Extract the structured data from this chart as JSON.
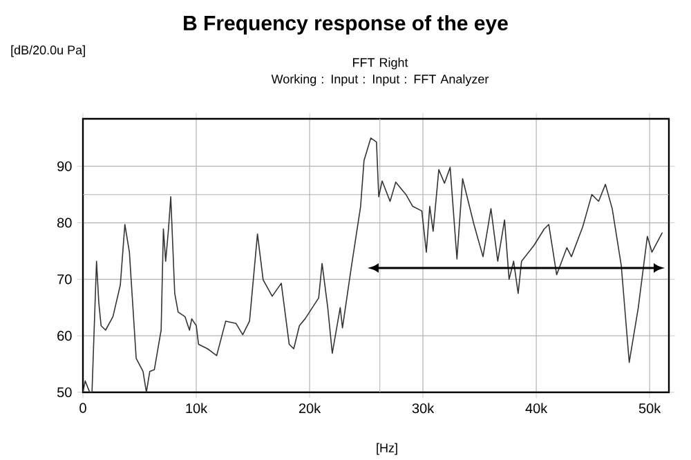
{
  "chart_data": {
    "type": "line",
    "title": "**B**  Frequency response of the eye",
    "subtitle": "FFT Right\nWorking : Input : Input : FFT Analyzer",
    "ylabel": "[dB/20.0u Pa]",
    "xlabel": "[Hz]",
    "xlim": [
      0,
      51700
    ],
    "ylim": [
      50,
      98.4
    ],
    "xticks": [
      {
        "value": 0,
        "label": "0"
      },
      {
        "value": 10000,
        "label": "10k"
      },
      {
        "value": 20000,
        "label": "20k"
      },
      {
        "value": 30000,
        "label": "30k"
      },
      {
        "value": 40000,
        "label": "40k"
      },
      {
        "value": 50000,
        "label": "50k"
      }
    ],
    "yticks": [
      50,
      60,
      70,
      80,
      90
    ],
    "grid": true,
    "ref_lines": [
      {
        "axis": "x",
        "value": 26200,
        "color": "#b0b0b0"
      },
      {
        "axis": "y",
        "value": 85,
        "color": "#b0b0b0"
      }
    ],
    "series": [
      {
        "color": "#333333",
        "x": [
          0,
          200,
          600,
          800,
          1200,
          1400,
          1600,
          2000,
          2650,
          3300,
          3700,
          4100,
          4700,
          5300,
          5600,
          5900,
          6300,
          6900,
          7100,
          7300,
          7550,
          7750,
          8100,
          8400,
          9000,
          9400,
          9600,
          10000,
          10200,
          11000,
          11800,
          12600,
          13500,
          14100,
          14700,
          15400,
          15900,
          16700,
          17500,
          18200,
          18600,
          19100,
          19600,
          20800,
          21100,
          21600,
          22000,
          22700,
          22900,
          23700,
          24500,
          24800,
          25400,
          25900,
          26100,
          26400,
          27100,
          27600,
          28500,
          29100,
          29900,
          30300,
          30600,
          30900,
          31400,
          31900,
          32400,
          33000,
          33500,
          34500,
          35300,
          36000,
          36600,
          37200,
          37600,
          38000,
          38400,
          38700,
          39800,
          40700,
          41100,
          41800,
          42700,
          43100,
          44100,
          44900,
          45500,
          46100,
          46700,
          47500,
          48200,
          49000,
          49800,
          50200,
          51100
        ],
        "values": [
          50,
          52,
          50,
          50,
          73.2,
          65.9,
          61.8,
          61,
          63.4,
          69,
          79.7,
          74.8,
          56,
          53.7,
          50,
          53.7,
          54,
          61,
          78.9,
          73.2,
          78.9,
          84.6,
          67.5,
          64.2,
          63.4,
          61,
          63,
          61.8,
          58.5,
          57.7,
          56.5,
          62.6,
          62.2,
          60.2,
          62.6,
          78,
          69.9,
          67,
          69.3,
          58.5,
          57.7,
          61.8,
          63,
          66.7,
          72.8,
          65,
          56.9,
          65,
          61.4,
          72.4,
          82.9,
          91,
          95,
          94.3,
          84.6,
          87.4,
          83.8,
          87.2,
          85,
          82.9,
          82.1,
          74.8,
          82.9,
          78.5,
          89.4,
          87,
          89.8,
          73.6,
          87.8,
          79.7,
          74,
          82.5,
          73.2,
          80.5,
          70,
          73.2,
          67.5,
          73.2,
          76,
          78.9,
          79.7,
          70.8,
          75.6,
          74,
          79.3,
          85,
          83.8,
          86.8,
          82.5,
          72.4,
          55.3,
          65,
          77.6,
          74.8,
          78.2
        ]
      }
    ]
  }
}
